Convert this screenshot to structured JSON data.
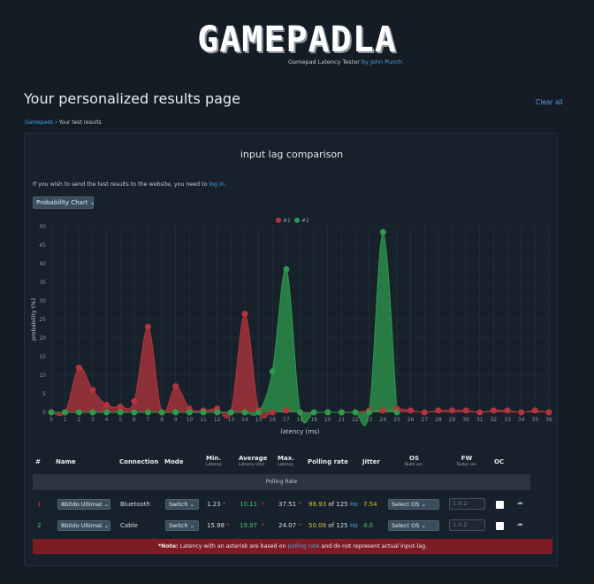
{
  "header": {
    "logo": "GAMEPADLA",
    "subtitle": "Gamepad Latency Tester",
    "subtitle_by": "by John Punch"
  },
  "page": {
    "title": "Your personalized results page",
    "clear_all": "Clear all",
    "breadcrumb": {
      "root": "Gamepads",
      "separator": "›",
      "current": "Your test results"
    }
  },
  "panel": {
    "title": "input lag comparison",
    "login_note": "If you wish to send the test results to the website, you need to",
    "login_link": "log in.",
    "chart_type": "Probability Chart"
  },
  "chart_data": {
    "type": "area",
    "xlabel": "latency (ms)",
    "ylabel": "probability (%)",
    "xlim": [
      0,
      36
    ],
    "ylim": [
      0,
      50
    ],
    "grid": true,
    "legend": "top-center",
    "x_ticks": [
      0,
      1,
      2,
      3,
      4,
      5,
      6,
      7,
      8,
      9,
      10,
      11,
      12,
      13,
      14,
      15,
      16,
      17,
      18,
      19,
      20,
      21,
      22,
      23,
      24,
      25,
      26,
      27,
      28,
      29,
      30,
      31,
      32,
      33,
      34,
      35,
      36
    ],
    "y_ticks": [
      0,
      5,
      10,
      15,
      20,
      25,
      30,
      35,
      40,
      45,
      50
    ],
    "series": [
      {
        "name": "#1",
        "color": "#b5343c",
        "points": [
          [
            0,
            0
          ],
          [
            1,
            0
          ],
          [
            2,
            12
          ],
          [
            3,
            6
          ],
          [
            4,
            2
          ],
          [
            5,
            1.5
          ],
          [
            6,
            3
          ],
          [
            7,
            23
          ],
          [
            8,
            0
          ],
          [
            9,
            7
          ],
          [
            10,
            1
          ],
          [
            11,
            0.5
          ],
          [
            12,
            1
          ],
          [
            13,
            0
          ],
          [
            14,
            26.5
          ],
          [
            15,
            0.5
          ],
          [
            16,
            0
          ],
          [
            17,
            0.5
          ],
          [
            18,
            0
          ],
          [
            19,
            0
          ],
          [
            20,
            0
          ],
          [
            21,
            0
          ],
          [
            22,
            0
          ],
          [
            23,
            0.5
          ],
          [
            24,
            0.5
          ],
          [
            25,
            1
          ],
          [
            26,
            0.5
          ],
          [
            27,
            0
          ],
          [
            28,
            0.5
          ],
          [
            29,
            0.5
          ],
          [
            30,
            0.5
          ],
          [
            31,
            0
          ],
          [
            32,
            0.5
          ],
          [
            33,
            0.5
          ],
          [
            34,
            0
          ],
          [
            35,
            0.5
          ],
          [
            36,
            0
          ]
        ]
      },
      {
        "name": "#2",
        "color": "#2f9a4b",
        "points": [
          [
            0,
            0
          ],
          [
            1,
            0
          ],
          [
            2,
            0
          ],
          [
            3,
            0
          ],
          [
            4,
            0
          ],
          [
            5,
            0
          ],
          [
            6,
            0
          ],
          [
            7,
            0
          ],
          [
            8,
            0
          ],
          [
            9,
            0
          ],
          [
            10,
            0
          ],
          [
            11,
            0
          ],
          [
            12,
            0
          ],
          [
            13,
            0
          ],
          [
            14,
            0
          ],
          [
            15,
            0
          ],
          [
            16,
            11
          ],
          [
            17,
            38.5
          ],
          [
            18,
            0
          ],
          [
            19,
            0
          ],
          [
            20,
            0
          ],
          [
            21,
            0
          ],
          [
            22,
            0
          ],
          [
            23,
            0
          ],
          [
            24,
            48.5
          ],
          [
            25,
            0
          ]
        ]
      }
    ]
  },
  "table": {
    "headers": {
      "num": "#",
      "name": "Name",
      "connection": "Connection",
      "mode": "Mode",
      "min": "Min.",
      "min_sub": "Latency",
      "avg": "Average",
      "avg_sub": "Latency (ms)",
      "max": "Max.",
      "max_sub": "Latency",
      "polling": "Polling rate",
      "jitter": "Jitter",
      "os": "OS",
      "os_sub": "Build ver.",
      "fw": "FW",
      "fw_sub": "Tester ver.",
      "oc": "OC"
    },
    "polling_band": "Polling Rate",
    "asterisk": "*",
    "of_text": "of 125",
    "hz": "Hz",
    "rows": [
      {
        "num": "1",
        "name": "8bitdo Ultimat",
        "connection": "Bluetooth",
        "mode": "Switch",
        "min": "1.23",
        "avg": "10.11",
        "max": "37.51",
        "polling": "98.93",
        "jitter": "7.54",
        "os": "Select OS",
        "fw": "1.0.2"
      },
      {
        "num": "2",
        "name": "8bitdo Ultimat",
        "connection": "Cable",
        "mode": "Switch",
        "min": "15.98",
        "avg": "19.97",
        "max": "24.07",
        "polling": "50.08",
        "jitter": "4.0",
        "os": "Select OS",
        "fw": "1.0.2"
      }
    ]
  },
  "note": {
    "prefix": "*Note:",
    "text1": "Latency with an asterisk are based on",
    "link": "polling rate",
    "text2": "and do not represent actual input-lag."
  }
}
